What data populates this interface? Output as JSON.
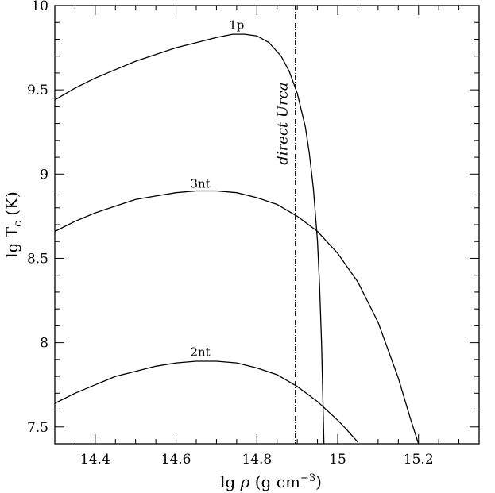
{
  "chart_data": {
    "type": "line",
    "title": "",
    "xlabel": {
      "prefix": "lg ",
      "rho": "ρ",
      "mid": " (g cm",
      "sup": "−3",
      "suffix": ")"
    },
    "ylabel": {
      "prefix": "lg T",
      "sub": "c",
      "suffix": " (K)"
    },
    "xlim": [
      14.3,
      15.35
    ],
    "ylim": [
      7.4,
      10.0
    ],
    "xticks": [
      14.4,
      14.6,
      14.8,
      15.0,
      15.2
    ],
    "xtick_labels": [
      "14.4",
      "14.6",
      "14.8",
      "15",
      "15.2"
    ],
    "yticks": [
      7.5,
      8.0,
      8.5,
      9.0,
      9.5,
      10.0
    ],
    "ytick_labels": [
      "7.5",
      "8",
      "8.5",
      "9",
      "9.5",
      "10"
    ],
    "grid": false,
    "series": [
      {
        "name": "1p",
        "label_at": [
          14.75,
          9.86
        ],
        "x": [
          14.3,
          14.35,
          14.4,
          14.45,
          14.5,
          14.55,
          14.6,
          14.65,
          14.7,
          14.74,
          14.77,
          14.8,
          14.83,
          14.86,
          14.88,
          14.9,
          14.92,
          14.93,
          14.94,
          14.95,
          14.955,
          14.96,
          14.963,
          14.966
        ],
        "y": [
          9.44,
          9.51,
          9.57,
          9.62,
          9.67,
          9.71,
          9.75,
          9.78,
          9.81,
          9.83,
          9.83,
          9.82,
          9.78,
          9.7,
          9.61,
          9.48,
          9.28,
          9.12,
          8.91,
          8.6,
          8.35,
          8.0,
          7.7,
          7.4
        ]
      },
      {
        "name": "3nt",
        "label_at": [
          14.66,
          8.92
        ],
        "x": [
          14.3,
          14.35,
          14.4,
          14.45,
          14.5,
          14.55,
          14.6,
          14.65,
          14.7,
          14.75,
          14.8,
          14.85,
          14.9,
          14.95,
          15.0,
          15.05,
          15.1,
          15.15,
          15.18,
          15.2
        ],
        "y": [
          8.66,
          8.72,
          8.77,
          8.81,
          8.85,
          8.87,
          8.89,
          8.9,
          8.9,
          8.89,
          8.86,
          8.82,
          8.75,
          8.66,
          8.53,
          8.36,
          8.12,
          7.79,
          7.55,
          7.4
        ]
      },
      {
        "name": "2nt",
        "label_at": [
          14.66,
          7.92
        ],
        "x": [
          14.3,
          14.35,
          14.4,
          14.45,
          14.5,
          14.55,
          14.6,
          14.65,
          14.7,
          14.75,
          14.8,
          14.85,
          14.9,
          14.95,
          15.0,
          15.02,
          15.05
        ],
        "y": [
          7.64,
          7.7,
          7.75,
          7.8,
          7.83,
          7.86,
          7.88,
          7.89,
          7.89,
          7.88,
          7.85,
          7.81,
          7.74,
          7.65,
          7.54,
          7.49,
          7.41
        ]
      }
    ],
    "vline": {
      "x": 14.895,
      "label": "direct Urca",
      "label_y": 9.3
    }
  }
}
